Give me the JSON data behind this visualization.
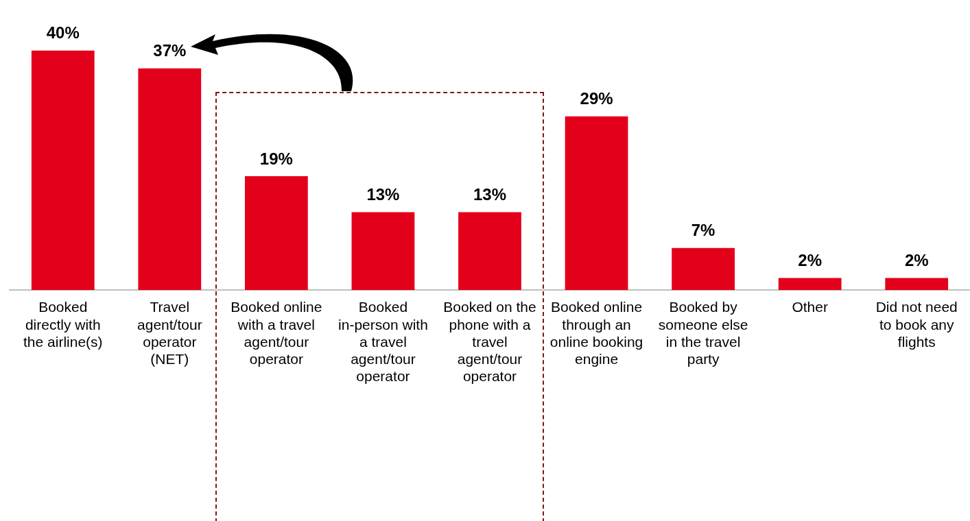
{
  "chart_data": {
    "type": "bar",
    "categories": [
      "Booked directly with the airline(s)",
      "Travel agent/tour operator (NET)",
      "Booked online with a travel agent/tour operator",
      "Booked in-person with a travel agent/tour operator",
      "Booked on the phone with a travel agent/tour operator",
      "Booked online through an online booking engine",
      "Booked by someone else in the travel party",
      "Other",
      "Did not need to book any flights"
    ],
    "values": [
      40,
      37,
      19,
      13,
      13,
      29,
      7,
      2,
      2
    ],
    "value_labels": [
      "40%",
      "37%",
      "19%",
      "13%",
      "13%",
      "29%",
      "7%",
      "2%",
      "2%"
    ],
    "color": "#e3001b",
    "grid": false,
    "legend": false
  }
}
